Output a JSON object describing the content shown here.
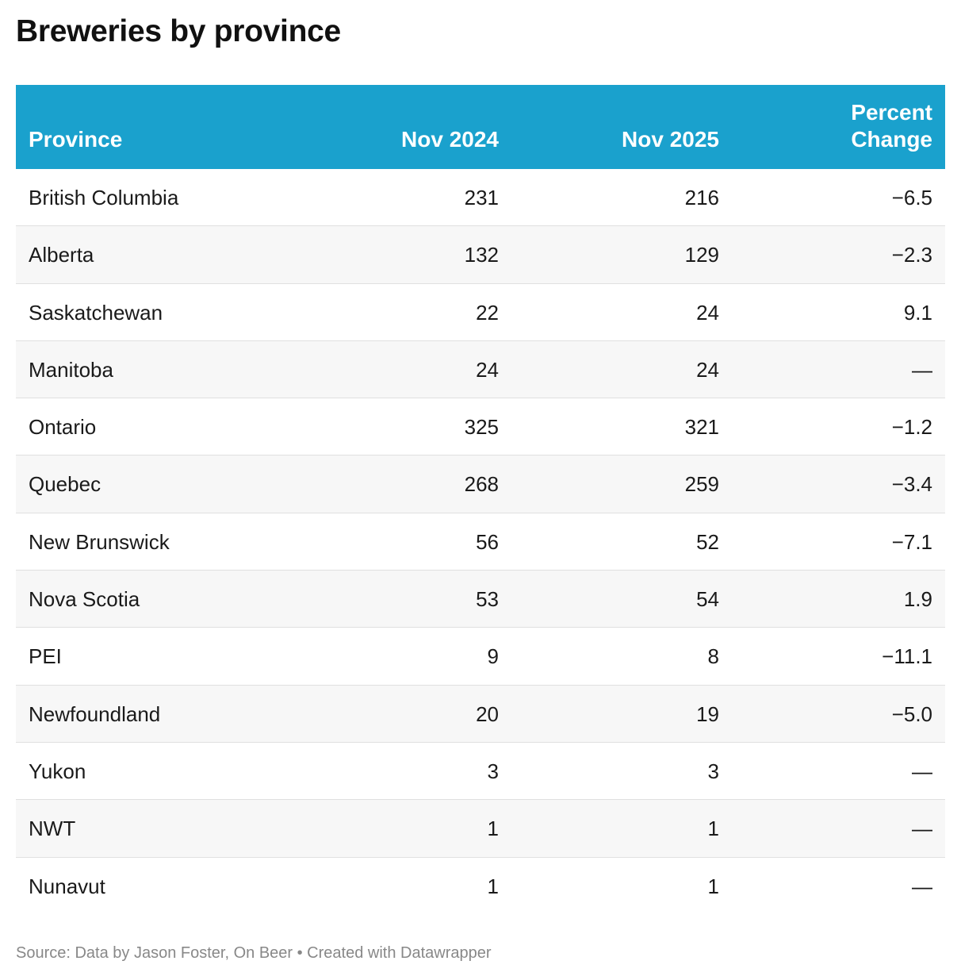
{
  "title": "Breweries by province",
  "columns": {
    "province": "Province",
    "nov2024": "Nov 2024",
    "nov2025": "Nov 2025",
    "change_line1": "Percent",
    "change_line2": "Change"
  },
  "rows": [
    {
      "province": "British Columbia",
      "nov2024": "231",
      "nov2025": "216",
      "change": "−6.5"
    },
    {
      "province": "Alberta",
      "nov2024": "132",
      "nov2025": "129",
      "change": "−2.3"
    },
    {
      "province": "Saskatchewan",
      "nov2024": "22",
      "nov2025": "24",
      "change": "9.1"
    },
    {
      "province": "Manitoba",
      "nov2024": "24",
      "nov2025": "24",
      "change": "—"
    },
    {
      "province": "Ontario",
      "nov2024": "325",
      "nov2025": "321",
      "change": "−1.2"
    },
    {
      "province": "Quebec",
      "nov2024": "268",
      "nov2025": "259",
      "change": "−3.4"
    },
    {
      "province": "New Brunswick",
      "nov2024": "56",
      "nov2025": "52",
      "change": "−7.1"
    },
    {
      "province": "Nova Scotia",
      "nov2024": "53",
      "nov2025": "54",
      "change": "1.9"
    },
    {
      "province": "PEI",
      "nov2024": "9",
      "nov2025": "8",
      "change": "−11.1"
    },
    {
      "province": "Newfoundland",
      "nov2024": "20",
      "nov2025": "19",
      "change": "−5.0"
    },
    {
      "province": "Yukon",
      "nov2024": "3",
      "nov2025": "3",
      "change": "—"
    },
    {
      "province": "NWT",
      "nov2024": "1",
      "nov2025": "1",
      "change": "—"
    },
    {
      "province": "Nunavut",
      "nov2024": "1",
      "nov2025": "1",
      "change": "—"
    }
  ],
  "footer": "Source: Data by Jason Foster, On Beer • Created with Datawrapper",
  "colors": {
    "header_bg": "#1aa1cd",
    "header_text": "#ffffff",
    "alt_row": "#f7f7f7"
  },
  "chart_data": {
    "type": "table",
    "title": "Breweries by province",
    "columns": [
      "Province",
      "Nov 2024",
      "Nov 2025",
      "Percent Change"
    ],
    "rows": [
      [
        "British Columbia",
        231,
        216,
        -6.5
      ],
      [
        "Alberta",
        132,
        129,
        -2.3
      ],
      [
        "Saskatchewan",
        22,
        24,
        9.1
      ],
      [
        "Manitoba",
        24,
        24,
        null
      ],
      [
        "Ontario",
        325,
        321,
        -1.2
      ],
      [
        "Quebec",
        268,
        259,
        -3.4
      ],
      [
        "New Brunswick",
        56,
        52,
        -7.1
      ],
      [
        "Nova Scotia",
        53,
        54,
        1.9
      ],
      [
        "PEI",
        9,
        8,
        -11.1
      ],
      [
        "Newfoundland",
        20,
        19,
        -5.0
      ],
      [
        "Yukon",
        3,
        3,
        null
      ],
      [
        "NWT",
        1,
        1,
        null
      ],
      [
        "Nunavut",
        1,
        1,
        null
      ]
    ]
  }
}
